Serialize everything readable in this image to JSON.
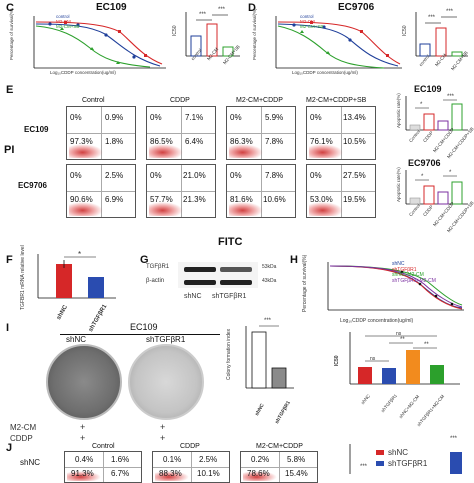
{
  "panels": {
    "C": "C",
    "D": "D",
    "E": "E",
    "F": "F",
    "G": "G",
    "H": "H",
    "I": "I",
    "J": "J"
  },
  "panel_c": {
    "title": "EC109",
    "legend": [
      "control",
      "M2-CM",
      "M2-CM+SB"
    ],
    "xlabel": "Log₁₀CDDP concentration(ug/ml)",
    "ylabel": "Percentage of survival(%)",
    "bar_ylabel": "IC50",
    "bar_categories": [
      "control",
      "M2-CM",
      "M2-CM+SB"
    ],
    "sig": [
      "***",
      "***"
    ]
  },
  "panel_d": {
    "title": "EC9706",
    "legend": [
      "control",
      "M2-CM",
      "M2-CM+SB"
    ],
    "xlabel": "Log₁₀CDDP concentration(ug/ml)",
    "ylabel": "Percentage of survival(%)",
    "bar_ylabel": "IC50",
    "bar_categories": [
      "control",
      "M2-CM",
      "M2-CM+SB"
    ],
    "sig": [
      "***",
      "***"
    ]
  },
  "panel_e": {
    "axis_y": "PI",
    "axis_x": "FITC",
    "columns": [
      "Control",
      "CDDP",
      "M2-CM+CDDP",
      "M2-CM+CDDP+SB"
    ],
    "rows": [
      {
        "label": "EC109",
        "quads": [
          [
            "0%",
            "0.9%",
            "97.3%",
            "1.8%"
          ],
          [
            "0%",
            "7.1%",
            "86.5%",
            "6.4%"
          ],
          [
            "0%",
            "5.9%",
            "86.3%",
            "7.8%"
          ],
          [
            "0%",
            "13.4%",
            "76.1%",
            "10.5%"
          ]
        ]
      },
      {
        "label": "EC9706",
        "quads": [
          [
            "0%",
            "2.5%",
            "90.6%",
            "6.9%"
          ],
          [
            "0%",
            "21.0%",
            "57.7%",
            "21.3%"
          ],
          [
            "0%",
            "7.8%",
            "81.6%",
            "10.6%"
          ],
          [
            "0%",
            "27.5%",
            "53.0%",
            "19.5%"
          ]
        ]
      }
    ],
    "bar_titles": [
      "EC109",
      "EC9706"
    ],
    "bar_ylabel": "Apoptotic rate(%)",
    "bar_categories": [
      "Control",
      "CDDP",
      "M2-CM+CDDP",
      "M2-CM+CDDP+SB"
    ],
    "sig_ec109": [
      "*",
      "***"
    ],
    "sig_ec9706": [
      "*",
      "*"
    ]
  },
  "panel_f": {
    "ylabel": "TGFBR1 mRNA relative level",
    "categories": [
      "shNC",
      "shTGFβR1"
    ],
    "sig": "*"
  },
  "panel_g": {
    "bands": [
      "TGFβR1",
      "β-actin"
    ],
    "sizes": [
      "53kDa",
      "43kDa"
    ],
    "lanes": [
      "shNC",
      "shTGFβR1"
    ]
  },
  "panel_h": {
    "legend": [
      "shNC",
      "shTGFβR1",
      "shNC+M2-CM",
      "shTGFβR1+M2-CM"
    ],
    "xlabel": "Log₁₀CDDP concentration(ug/ml)",
    "ylabel": "Percentage of survival(%)",
    "bar_ylabel": "IC50",
    "bar_categories": [
      "shNC",
      "shTGFβR1",
      "shNC+M2-CM",
      "shTGFβR1+M2-CM"
    ],
    "sig": [
      "ns",
      "ns",
      "**",
      "**"
    ]
  },
  "panel_i": {
    "title": "EC109",
    "dish_labels": [
      "shNC",
      "shTGFβR1"
    ],
    "treatments": [
      "M2-CM",
      "CDDP"
    ],
    "marks": [
      "+",
      "+",
      "+",
      "+"
    ],
    "bar_ylabel": "Colony formation index",
    "bar_categories": [
      "shNC",
      "shTGFβR1"
    ],
    "sig": "***"
  },
  "panel_j": {
    "columns": [
      "Control",
      "CDDP",
      "M2-CM+CDDP"
    ],
    "row_label": "shNC",
    "quads": [
      [
        "0.4%",
        "1.6%",
        "91.3%",
        "6.7%"
      ],
      [
        "0.1%",
        "2.5%",
        "88.3%",
        "10.1%"
      ],
      [
        "0.2%",
        "5.8%",
        "78.6%",
        "15.4%"
      ]
    ],
    "legend": [
      "shNC",
      "shTGFβR1"
    ],
    "sig": [
      "***",
      "***"
    ]
  },
  "colors": {
    "control": "#1f3f9a",
    "m2cm": "#d62728",
    "m2cmsb": "#2ca02c",
    "orange": "#f28b1e",
    "purple": "#7b2fa0",
    "navy": "#1f3f9a"
  }
}
